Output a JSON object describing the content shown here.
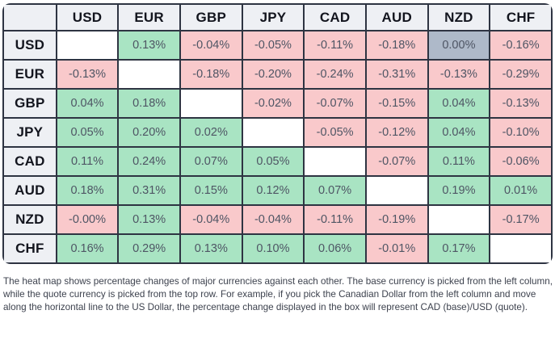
{
  "colors": {
    "self": "#ffffff",
    "positive": "#a9e4c3",
    "negative": "#f9c9cb",
    "zero": "#aeb9c9",
    "header_bg": "#eef0f4",
    "border": "#2e3442",
    "header_text": "#13151e",
    "cell_text": "#4e5564",
    "footnote_text": "#3d424e"
  },
  "heatmap": {
    "columns": [
      "USD",
      "EUR",
      "GBP",
      "JPY",
      "CAD",
      "AUD",
      "NZD",
      "CHF"
    ],
    "rows": [
      {
        "base": "USD",
        "cells": [
          {
            "label": "",
            "state": "self"
          },
          {
            "label": "0.13%",
            "state": "positive"
          },
          {
            "label": "-0.04%",
            "state": "negative"
          },
          {
            "label": "-0.05%",
            "state": "negative"
          },
          {
            "label": "-0.11%",
            "state": "negative"
          },
          {
            "label": "-0.18%",
            "state": "negative"
          },
          {
            "label": "0.00%",
            "state": "zero"
          },
          {
            "label": "-0.16%",
            "state": "negative"
          }
        ]
      },
      {
        "base": "EUR",
        "cells": [
          {
            "label": "-0.13%",
            "state": "negative"
          },
          {
            "label": "",
            "state": "self"
          },
          {
            "label": "-0.18%",
            "state": "negative"
          },
          {
            "label": "-0.20%",
            "state": "negative"
          },
          {
            "label": "-0.24%",
            "state": "negative"
          },
          {
            "label": "-0.31%",
            "state": "negative"
          },
          {
            "label": "-0.13%",
            "state": "negative"
          },
          {
            "label": "-0.29%",
            "state": "negative"
          }
        ]
      },
      {
        "base": "GBP",
        "cells": [
          {
            "label": "0.04%",
            "state": "positive"
          },
          {
            "label": "0.18%",
            "state": "positive"
          },
          {
            "label": "",
            "state": "self"
          },
          {
            "label": "-0.02%",
            "state": "negative"
          },
          {
            "label": "-0.07%",
            "state": "negative"
          },
          {
            "label": "-0.15%",
            "state": "negative"
          },
          {
            "label": "0.04%",
            "state": "positive"
          },
          {
            "label": "-0.13%",
            "state": "negative"
          }
        ]
      },
      {
        "base": "JPY",
        "cells": [
          {
            "label": "0.05%",
            "state": "positive"
          },
          {
            "label": "0.20%",
            "state": "positive"
          },
          {
            "label": "0.02%",
            "state": "positive"
          },
          {
            "label": "",
            "state": "self"
          },
          {
            "label": "-0.05%",
            "state": "negative"
          },
          {
            "label": "-0.12%",
            "state": "negative"
          },
          {
            "label": "0.04%",
            "state": "positive"
          },
          {
            "label": "-0.10%",
            "state": "negative"
          }
        ]
      },
      {
        "base": "CAD",
        "cells": [
          {
            "label": "0.11%",
            "state": "positive"
          },
          {
            "label": "0.24%",
            "state": "positive"
          },
          {
            "label": "0.07%",
            "state": "positive"
          },
          {
            "label": "0.05%",
            "state": "positive"
          },
          {
            "label": "",
            "state": "self"
          },
          {
            "label": "-0.07%",
            "state": "negative"
          },
          {
            "label": "0.11%",
            "state": "positive"
          },
          {
            "label": "-0.06%",
            "state": "negative"
          }
        ]
      },
      {
        "base": "AUD",
        "cells": [
          {
            "label": "0.18%",
            "state": "positive"
          },
          {
            "label": "0.31%",
            "state": "positive"
          },
          {
            "label": "0.15%",
            "state": "positive"
          },
          {
            "label": "0.12%",
            "state": "positive"
          },
          {
            "label": "0.07%",
            "state": "positive"
          },
          {
            "label": "",
            "state": "self"
          },
          {
            "label": "0.19%",
            "state": "positive"
          },
          {
            "label": "0.01%",
            "state": "positive"
          }
        ]
      },
      {
        "base": "NZD",
        "cells": [
          {
            "label": "-0.00%",
            "state": "negative"
          },
          {
            "label": "0.13%",
            "state": "positive"
          },
          {
            "label": "-0.04%",
            "state": "negative"
          },
          {
            "label": "-0.04%",
            "state": "negative"
          },
          {
            "label": "-0.11%",
            "state": "negative"
          },
          {
            "label": "-0.19%",
            "state": "negative"
          },
          {
            "label": "",
            "state": "self"
          },
          {
            "label": "-0.17%",
            "state": "negative"
          }
        ]
      },
      {
        "base": "CHF",
        "cells": [
          {
            "label": "0.16%",
            "state": "positive"
          },
          {
            "label": "0.29%",
            "state": "positive"
          },
          {
            "label": "0.13%",
            "state": "positive"
          },
          {
            "label": "0.10%",
            "state": "positive"
          },
          {
            "label": "0.06%",
            "state": "positive"
          },
          {
            "label": "-0.01%",
            "state": "negative"
          },
          {
            "label": "0.17%",
            "state": "positive"
          },
          {
            "label": "",
            "state": "self"
          }
        ]
      }
    ]
  },
  "footnote": {
    "text": "The heat map shows percentage changes of major currencies against each other. The base currency is picked from the left column, while the quote currency is picked from the top row. For example, if you pick the Canadian Dollar from the left column and move along the horizontal line to the US Dollar, the percentage change displayed in the box will represent CAD (base)/USD (quote)."
  },
  "chart_data": {
    "type": "heatmap",
    "title": "",
    "columns_quote_currency": [
      "USD",
      "EUR",
      "GBP",
      "JPY",
      "CAD",
      "AUD",
      "NZD",
      "CHF"
    ],
    "rows_base_currency": [
      "USD",
      "EUR",
      "GBP",
      "JPY",
      "CAD",
      "AUD",
      "NZD",
      "CHF"
    ],
    "values_percent": [
      [
        null,
        0.13,
        -0.04,
        -0.05,
        -0.11,
        -0.18,
        0.0,
        -0.16
      ],
      [
        -0.13,
        null,
        -0.18,
        -0.2,
        -0.24,
        -0.31,
        -0.13,
        -0.29
      ],
      [
        0.04,
        0.18,
        null,
        -0.02,
        -0.07,
        -0.15,
        0.04,
        -0.13
      ],
      [
        0.05,
        0.2,
        0.02,
        null,
        -0.05,
        -0.12,
        0.04,
        -0.1
      ],
      [
        0.11,
        0.24,
        0.07,
        0.05,
        null,
        -0.07,
        0.11,
        -0.06
      ],
      [
        0.18,
        0.31,
        0.15,
        0.12,
        0.07,
        null,
        0.19,
        0.01
      ],
      [
        -0.0,
        0.13,
        -0.04,
        -0.04,
        -0.11,
        -0.19,
        null,
        -0.17
      ],
      [
        0.16,
        0.29,
        0.13,
        0.1,
        0.06,
        -0.01,
        0.17,
        null
      ]
    ],
    "color_coding": {
      "positive": "#a9e4c3",
      "negative": "#f9c9cb",
      "zero": "#aeb9c9",
      "diagonal_blank": "#ffffff"
    },
    "annotations": "The heat map shows percentage changes of major currencies against each other. The base currency is picked from the left column, while the quote currency is picked from the top row. For example, if you pick the Canadian Dollar from the left column and move along the horizontal line to the US Dollar, the percentage change displayed in the box will represent CAD (base)/USD (quote).",
    "legend_position": "none",
    "grid": true
  }
}
